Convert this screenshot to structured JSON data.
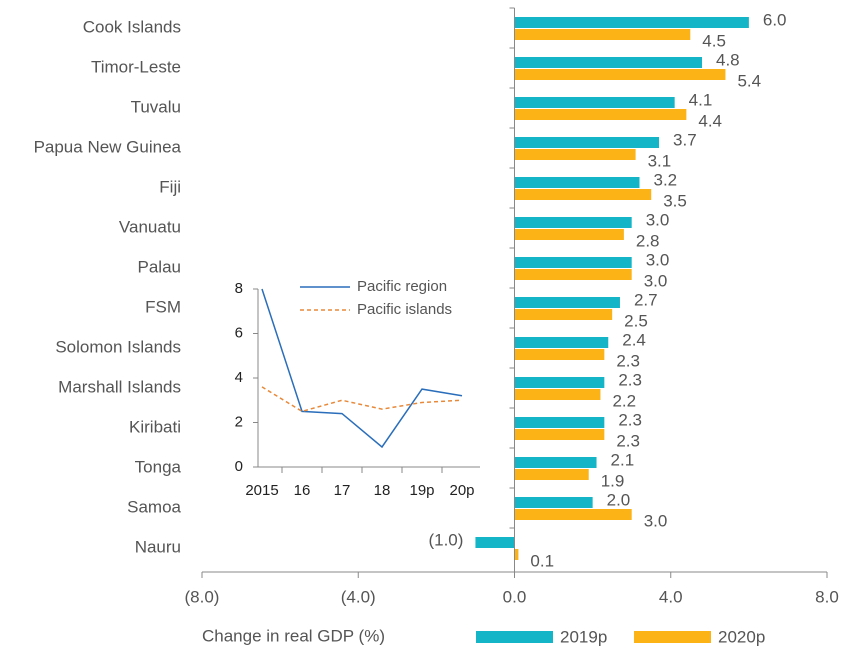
{
  "chart_data": [
    {
      "type": "hbar",
      "categories": [
        "Cook Islands",
        "Timor-Leste",
        "Tuvalu",
        "Papua New Guinea",
        "Fiji",
        "Vanuatu",
        "Palau",
        "FSM",
        "Solomon Islands",
        "Marshall Islands",
        "Kiribati",
        "Tonga",
        "Samoa",
        "Nauru"
      ],
      "series": [
        {
          "name": "2019p",
          "color": "#13b5c6",
          "values": [
            6.0,
            4.8,
            4.1,
            3.7,
            3.2,
            3.0,
            3.0,
            2.7,
            2.4,
            2.3,
            2.3,
            2.1,
            2.0,
            -1.0
          ],
          "value_labels": [
            "6.0",
            "4.8",
            "4.1",
            "3.7",
            "3.2",
            "3.0",
            "3.0",
            "2.7",
            "2.4",
            "2.3",
            "2.3",
            "2.1",
            "2.0",
            "(1.0)"
          ]
        },
        {
          "name": "2020p",
          "color": "#fbb316",
          "values": [
            4.5,
            5.4,
            4.4,
            3.1,
            3.5,
            2.8,
            3.0,
            2.5,
            2.3,
            2.2,
            2.3,
            1.9,
            3.0,
            0.1
          ],
          "value_labels": [
            "4.5",
            "5.4",
            "4.4",
            "3.1",
            "3.5",
            "2.8",
            "3.0",
            "2.5",
            "2.3",
            "2.2",
            "2.3",
            "1.9",
            "3.0",
            "0.1"
          ]
        }
      ],
      "xlabel": "Change in real GDP (%)",
      "xlim": [
        -8,
        8
      ],
      "xticks": [
        {
          "value": -8,
          "label": "(8.0)"
        },
        {
          "value": -4,
          "label": "(4.0)"
        },
        {
          "value": 0,
          "label": "0.0"
        },
        {
          "value": 4,
          "label": "4.0"
        },
        {
          "value": 8,
          "label": "8.0"
        }
      ],
      "legend": "bottom"
    },
    {
      "type": "line",
      "categories": [
        "2015",
        "16",
        "17",
        "18",
        "19p",
        "20p"
      ],
      "series": [
        {
          "name": "Pacific region",
          "color": "#2a6ebb",
          "dash": false,
          "values": [
            8.0,
            2.5,
            2.4,
            0.9,
            3.5,
            3.2
          ]
        },
        {
          "name": "Pacific islands",
          "color": "#e8893a",
          "dash": true,
          "values": [
            3.6,
            2.5,
            3.0,
            2.6,
            2.9,
            3.0
          ]
        }
      ],
      "ylim": [
        0,
        8
      ],
      "yticks": [
        0,
        2,
        4,
        6,
        8
      ],
      "legend": "top-right"
    }
  ]
}
